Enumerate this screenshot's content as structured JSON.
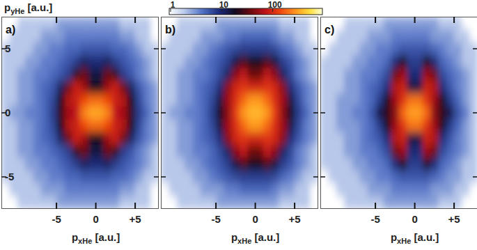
{
  "chart_data": [
    {
      "type": "heatmap",
      "title": "a)",
      "x_label": "pxHe [a.u.]",
      "y_label": "pyHe [a.u.]",
      "xlim": [
        -12,
        8
      ],
      "ylim": [
        -7.5,
        7.5
      ],
      "xticks": [
        {
          "value": -5,
          "label": "-5"
        },
        0,
        {
          "value": 5,
          "label": "+5"
        }
      ],
      "yticks": [
        -5,
        0,
        5
      ],
      "colorbar": {
        "range": [
          1,
          1000
        ],
        "ticks": [
          1,
          10,
          100
        ]
      },
      "x_edges": [
        -12,
        -11,
        -10,
        -9,
        -8,
        -7,
        -6,
        -5,
        -4,
        -3,
        -2,
        -1,
        0,
        1,
        2,
        3,
        4,
        5,
        6,
        7,
        8
      ],
      "y_edges": [
        7.5,
        6.5,
        5.5,
        4.5,
        3.5,
        2.5,
        1.5,
        0.5,
        -0.5,
        -1.5,
        -2.5,
        -3.5,
        -4.5,
        -5.5,
        -6.5,
        -7.5
      ],
      "cells": [
        [
          1,
          1,
          2,
          2,
          2,
          2,
          2,
          3,
          3,
          3,
          3,
          3,
          3,
          3,
          3,
          2,
          2,
          2,
          2,
          1
        ],
        [
          1,
          2,
          2,
          2,
          2,
          3,
          3,
          3,
          4,
          4,
          4,
          4,
          4,
          4,
          4,
          3,
          3,
          2,
          2,
          1
        ],
        [
          2,
          2,
          2,
          2,
          3,
          3,
          4,
          4,
          5,
          5,
          6,
          6,
          6,
          6,
          5,
          5,
          4,
          3,
          2,
          2
        ],
        [
          2,
          2,
          2,
          3,
          3,
          4,
          4,
          5,
          6,
          8,
          12,
          10,
          10,
          12,
          8,
          6,
          5,
          4,
          3,
          2
        ],
        [
          2,
          2,
          3,
          3,
          4,
          4,
          5,
          6,
          8,
          25,
          40,
          15,
          15,
          40,
          25,
          8,
          6,
          4,
          3,
          2
        ],
        [
          2,
          2,
          3,
          3,
          4,
          5,
          6,
          12,
          40,
          90,
          60,
          20,
          20,
          60,
          90,
          40,
          12,
          6,
          4,
          3
        ],
        [
          2,
          2,
          3,
          3,
          4,
          5,
          7,
          20,
          70,
          90,
          150,
          200,
          200,
          150,
          90,
          70,
          20,
          7,
          4,
          3
        ],
        [
          2,
          3,
          3,
          4,
          4,
          5,
          8,
          25,
          60,
          80,
          250,
          350,
          350,
          250,
          80,
          60,
          25,
          8,
          5,
          3
        ],
        [
          2,
          2,
          3,
          3,
          4,
          5,
          7,
          20,
          70,
          90,
          150,
          200,
          200,
          150,
          90,
          70,
          20,
          7,
          4,
          3
        ],
        [
          2,
          2,
          3,
          3,
          4,
          5,
          6,
          12,
          40,
          90,
          60,
          20,
          20,
          60,
          90,
          40,
          12,
          6,
          4,
          3
        ],
        [
          2,
          2,
          3,
          3,
          4,
          4,
          5,
          6,
          8,
          25,
          40,
          15,
          15,
          40,
          25,
          8,
          6,
          4,
          3,
          2
        ],
        [
          2,
          2,
          2,
          3,
          3,
          4,
          4,
          5,
          6,
          8,
          12,
          10,
          10,
          12,
          8,
          6,
          5,
          4,
          3,
          2
        ],
        [
          2,
          2,
          2,
          2,
          3,
          3,
          4,
          4,
          5,
          5,
          6,
          6,
          6,
          6,
          5,
          5,
          4,
          3,
          2,
          2
        ],
        [
          1,
          2,
          2,
          2,
          2,
          3,
          3,
          3,
          4,
          4,
          4,
          4,
          4,
          4,
          4,
          3,
          3,
          2,
          2,
          1
        ],
        [
          1,
          1,
          2,
          2,
          2,
          2,
          2,
          3,
          3,
          3,
          3,
          3,
          3,
          3,
          3,
          2,
          2,
          2,
          2,
          1
        ]
      ]
    },
    {
      "type": "heatmap",
      "title": "b)",
      "x_label": "pxHe [a.u.]",
      "xlim": [
        -12,
        8
      ],
      "ylim": [
        -7.5,
        7.5
      ],
      "xticks": [
        {
          "value": -5,
          "label": "-5"
        },
        0,
        {
          "value": 5,
          "label": "+5"
        }
      ],
      "yticks": [
        -5,
        0,
        5
      ],
      "tick_labels": "x",
      "x_edges": [
        -12,
        -11,
        -10,
        -9,
        -8,
        -7,
        -6,
        -5,
        -4,
        -3,
        -2,
        -1,
        0,
        1,
        2,
        3,
        4,
        5,
        6,
        7,
        8
      ],
      "y_edges": [
        7.5,
        6.5,
        5.5,
        4.5,
        3.5,
        2.5,
        1.5,
        0.5,
        -0.5,
        -1.5,
        -2.5,
        -3.5,
        -4.5,
        -5.5,
        -6.5,
        -7.5
      ],
      "cells": [
        [
          1,
          1,
          2,
          2,
          2,
          2,
          2,
          3,
          3,
          3,
          3,
          3,
          3,
          3,
          3,
          2,
          2,
          2,
          2,
          1
        ],
        [
          1,
          2,
          2,
          2,
          2,
          3,
          3,
          3,
          4,
          4,
          5,
          5,
          5,
          5,
          4,
          3,
          3,
          2,
          2,
          1
        ],
        [
          2,
          2,
          2,
          2,
          3,
          3,
          4,
          5,
          6,
          7,
          8,
          8,
          8,
          8,
          7,
          5,
          4,
          3,
          2,
          2
        ],
        [
          2,
          2,
          2,
          3,
          3,
          4,
          5,
          6,
          8,
          15,
          30,
          20,
          20,
          30,
          15,
          8,
          6,
          4,
          3,
          2
        ],
        [
          2,
          2,
          3,
          3,
          4,
          4,
          5,
          7,
          12,
          50,
          80,
          40,
          40,
          80,
          50,
          12,
          7,
          4,
          3,
          2
        ],
        [
          2,
          2,
          3,
          3,
          4,
          5,
          6,
          10,
          50,
          100,
          120,
          100,
          100,
          120,
          100,
          50,
          10,
          6,
          4,
          3
        ],
        [
          2,
          2,
          3,
          3,
          4,
          5,
          7,
          15,
          60,
          110,
          200,
          300,
          300,
          200,
          110,
          60,
          15,
          7,
          4,
          3
        ],
        [
          2,
          3,
          3,
          4,
          4,
          5,
          8,
          20,
          50,
          130,
          300,
          400,
          400,
          300,
          130,
          50,
          20,
          8,
          5,
          3
        ],
        [
          2,
          2,
          3,
          3,
          4,
          5,
          7,
          15,
          60,
          110,
          200,
          300,
          300,
          200,
          110,
          60,
          15,
          7,
          4,
          3
        ],
        [
          2,
          2,
          3,
          3,
          4,
          5,
          6,
          10,
          50,
          100,
          120,
          100,
          100,
          120,
          100,
          50,
          10,
          6,
          4,
          3
        ],
        [
          2,
          2,
          3,
          3,
          4,
          4,
          5,
          7,
          12,
          50,
          80,
          40,
          40,
          80,
          50,
          12,
          7,
          4,
          3,
          2
        ],
        [
          2,
          2,
          2,
          3,
          3,
          4,
          5,
          6,
          8,
          15,
          30,
          20,
          20,
          30,
          15,
          8,
          6,
          4,
          3,
          2
        ],
        [
          2,
          2,
          2,
          2,
          3,
          3,
          4,
          5,
          6,
          7,
          8,
          8,
          8,
          8,
          7,
          5,
          4,
          3,
          2,
          2
        ],
        [
          1,
          2,
          2,
          2,
          2,
          3,
          3,
          3,
          4,
          4,
          5,
          5,
          5,
          5,
          4,
          3,
          3,
          2,
          2,
          1
        ],
        [
          1,
          1,
          2,
          2,
          2,
          2,
          2,
          3,
          3,
          3,
          3,
          3,
          3,
          3,
          3,
          2,
          2,
          2,
          2,
          1
        ]
      ]
    },
    {
      "type": "heatmap",
      "title": "c)",
      "x_label": "pxHe [a.u.]",
      "xlim": [
        -12,
        8
      ],
      "ylim": [
        -7.5,
        7.5
      ],
      "xticks": [
        {
          "value": -5,
          "label": "-5"
        },
        0,
        {
          "value": 5,
          "label": "+5"
        }
      ],
      "yticks": [
        -5,
        0,
        5
      ],
      "tick_labels": "x",
      "x_edges": [
        -12,
        -11,
        -10,
        -9,
        -8,
        -7,
        -6,
        -5,
        -4,
        -3,
        -2,
        -1,
        0,
        1,
        2,
        3,
        4,
        5,
        6,
        7,
        8
      ],
      "y_edges": [
        7.5,
        6.5,
        5.5,
        4.5,
        3.5,
        2.5,
        1.5,
        0.5,
        -0.5,
        -1.5,
        -2.5,
        -3.5,
        -4.5,
        -5.5,
        -6.5,
        -7.5
      ],
      "cells": [
        [
          1,
          1,
          1,
          2,
          2,
          2,
          2,
          2,
          3,
          3,
          3,
          3,
          3,
          3,
          3,
          2,
          2,
          2,
          1,
          1
        ],
        [
          1,
          1,
          2,
          2,
          2,
          2,
          3,
          3,
          3,
          4,
          4,
          4,
          4,
          4,
          3,
          3,
          3,
          2,
          2,
          1
        ],
        [
          1,
          2,
          2,
          2,
          2,
          3,
          3,
          4,
          4,
          5,
          6,
          6,
          6,
          6,
          5,
          4,
          3,
          3,
          2,
          2
        ],
        [
          2,
          2,
          2,
          2,
          3,
          3,
          4,
          4,
          5,
          10,
          20,
          8,
          8,
          20,
          10,
          5,
          4,
          3,
          2,
          2
        ],
        [
          2,
          2,
          2,
          3,
          3,
          4,
          4,
          5,
          7,
          40,
          60,
          10,
          10,
          60,
          40,
          7,
          5,
          4,
          3,
          2
        ],
        [
          2,
          2,
          2,
          3,
          3,
          4,
          5,
          6,
          10,
          70,
          90,
          15,
          15,
          90,
          70,
          10,
          6,
          4,
          3,
          2
        ],
        [
          2,
          2,
          3,
          3,
          3,
          4,
          5,
          8,
          20,
          60,
          120,
          220,
          220,
          120,
          60,
          20,
          8,
          5,
          3,
          2
        ],
        [
          2,
          2,
          3,
          3,
          4,
          4,
          6,
          14,
          25,
          50,
          200,
          320,
          320,
          200,
          50,
          25,
          14,
          6,
          4,
          2
        ],
        [
          2,
          2,
          3,
          3,
          3,
          4,
          5,
          8,
          20,
          60,
          120,
          220,
          220,
          120,
          60,
          20,
          8,
          5,
          3,
          2
        ],
        [
          2,
          2,
          2,
          3,
          3,
          4,
          5,
          6,
          10,
          70,
          90,
          15,
          15,
          90,
          70,
          10,
          6,
          4,
          3,
          2
        ],
        [
          2,
          2,
          2,
          3,
          3,
          4,
          4,
          5,
          7,
          40,
          60,
          10,
          10,
          60,
          40,
          7,
          5,
          4,
          3,
          2
        ],
        [
          2,
          2,
          2,
          2,
          3,
          3,
          4,
          4,
          5,
          10,
          20,
          8,
          8,
          20,
          10,
          5,
          4,
          3,
          2,
          2
        ],
        [
          1,
          2,
          2,
          2,
          2,
          3,
          3,
          4,
          4,
          5,
          6,
          6,
          6,
          6,
          5,
          4,
          3,
          3,
          2,
          2
        ],
        [
          1,
          1,
          2,
          2,
          2,
          2,
          3,
          3,
          3,
          4,
          4,
          4,
          4,
          4,
          3,
          3,
          3,
          2,
          2,
          1
        ],
        [
          1,
          1,
          1,
          2,
          2,
          2,
          2,
          2,
          3,
          3,
          3,
          3,
          3,
          3,
          3,
          2,
          2,
          2,
          1,
          1
        ]
      ]
    }
  ]
}
